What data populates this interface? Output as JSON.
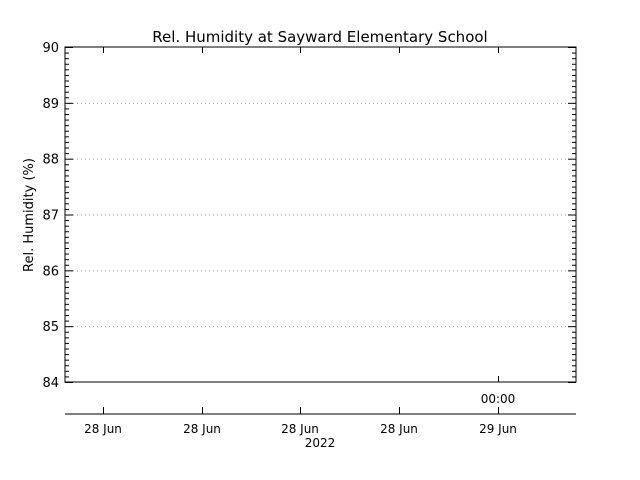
{
  "chart_data": {
    "type": "line",
    "title": "Rel. Humidity at Sayward Elementary School",
    "ylabel": "Rel. Humidity (%)",
    "xlabel": "",
    "ylim": [
      84,
      90
    ],
    "yticks": [
      "84",
      "85",
      "86",
      "87",
      "88",
      "89",
      "90"
    ],
    "y_minor_divisions": 10,
    "x_major_labels": [
      "28 Jun",
      "28 Jun",
      "28 Jun",
      "28 Jun",
      "29 Jun"
    ],
    "x_top_label": "00:00",
    "x_year_label": "2022",
    "grid": "dotted-horizontal",
    "series": []
  }
}
